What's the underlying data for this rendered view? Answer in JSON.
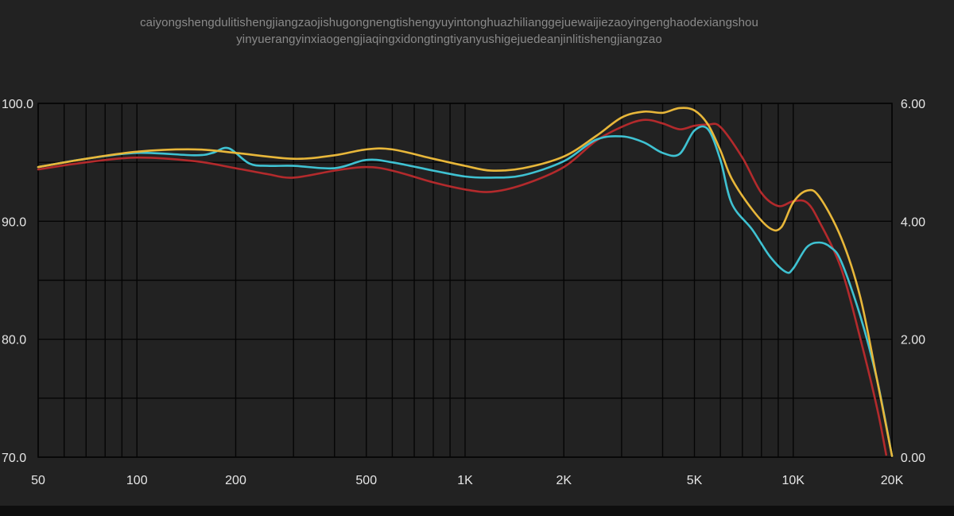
{
  "chart_data": {
    "type": "line",
    "title_lines": [
      "caiyongshengdulitishengjiangzaojishugongnengtishengyuyintonghuazhilianggejuewaijiezaoyingenghaodexiangshou",
      "yinyuerangyinxiaogengjiaqingxidongtingtiyanyushigejuedeanjinlitishengjiangzao"
    ],
    "x_scale": "log",
    "xlim": [
      50,
      20000
    ],
    "ylim_left": [
      70,
      100
    ],
    "ylim_right": [
      0,
      6
    ],
    "x_ticks": [
      {
        "value": 50,
        "label": "50"
      },
      {
        "value": 100,
        "label": "100"
      },
      {
        "value": 200,
        "label": "200"
      },
      {
        "value": 500,
        "label": "500"
      },
      {
        "value": 1000,
        "label": "1K"
      },
      {
        "value": 2000,
        "label": "2K"
      },
      {
        "value": 5000,
        "label": "5K"
      },
      {
        "value": 10000,
        "label": "10K"
      },
      {
        "value": 20000,
        "label": "20K"
      }
    ],
    "y_ticks_left": [
      {
        "value": 100,
        "label": "100.0"
      },
      {
        "value": 90,
        "label": "90.0"
      },
      {
        "value": 80,
        "label": "80.0"
      },
      {
        "value": 70,
        "label": "70.0"
      }
    ],
    "y_ticks_right": [
      {
        "value": 6,
        "label": "6.00"
      },
      {
        "value": 4,
        "label": "4.00"
      },
      {
        "value": 2,
        "label": "2.00"
      },
      {
        "value": 0,
        "label": "0.00"
      }
    ],
    "grid": true,
    "series": [
      {
        "color": "#e8b73a",
        "points": [
          [
            50,
            94.6
          ],
          [
            70,
            95.3
          ],
          [
            100,
            95.9
          ],
          [
            150,
            96.1
          ],
          [
            200,
            95.8
          ],
          [
            300,
            95.3
          ],
          [
            400,
            95.6
          ],
          [
            500,
            96.1
          ],
          [
            600,
            96.1
          ],
          [
            800,
            95.3
          ],
          [
            1000,
            94.7
          ],
          [
            1200,
            94.3
          ],
          [
            1500,
            94.5
          ],
          [
            2000,
            95.5
          ],
          [
            2500,
            97.2
          ],
          [
            3000,
            98.8
          ],
          [
            3500,
            99.3
          ],
          [
            4000,
            99.2
          ],
          [
            4500,
            99.6
          ],
          [
            5000,
            99.4
          ],
          [
            5500,
            98.2
          ],
          [
            6000,
            96.0
          ],
          [
            6500,
            93.6
          ],
          [
            7500,
            91.0
          ],
          [
            8500,
            89.4
          ],
          [
            9200,
            89.5
          ],
          [
            10000,
            91.6
          ],
          [
            11000,
            92.6
          ],
          [
            12000,
            92.1
          ],
          [
            14000,
            88.6
          ],
          [
            16000,
            83.6
          ],
          [
            18000,
            76.6
          ],
          [
            20000,
            70.1
          ]
        ]
      },
      {
        "color": "#3fc2d2",
        "points": [
          [
            50,
            94.6
          ],
          [
            70,
            95.3
          ],
          [
            100,
            95.8
          ],
          [
            150,
            95.6
          ],
          [
            170,
            95.8
          ],
          [
            190,
            96.2
          ],
          [
            220,
            94.9
          ],
          [
            250,
            94.7
          ],
          [
            300,
            94.7
          ],
          [
            400,
            94.5
          ],
          [
            500,
            95.2
          ],
          [
            600,
            95.0
          ],
          [
            800,
            94.3
          ],
          [
            1000,
            93.8
          ],
          [
            1200,
            93.7
          ],
          [
            1500,
            93.9
          ],
          [
            2000,
            95.1
          ],
          [
            2500,
            96.9
          ],
          [
            3000,
            97.2
          ],
          [
            3500,
            96.7
          ],
          [
            4000,
            95.8
          ],
          [
            4500,
            95.7
          ],
          [
            5000,
            97.7
          ],
          [
            5500,
            97.8
          ],
          [
            6000,
            95.2
          ],
          [
            6500,
            91.5
          ],
          [
            7500,
            89.3
          ],
          [
            8500,
            87.0
          ],
          [
            9500,
            85.7
          ],
          [
            10000,
            86.0
          ],
          [
            11000,
            87.8
          ],
          [
            12000,
            88.2
          ],
          [
            13000,
            87.8
          ],
          [
            14000,
            86.6
          ],
          [
            16000,
            82.0
          ],
          [
            18000,
            76.6
          ],
          [
            20000,
            70.1
          ]
        ]
      },
      {
        "color": "#b32a2c",
        "points": [
          [
            50,
            94.4
          ],
          [
            70,
            95.0
          ],
          [
            100,
            95.4
          ],
          [
            150,
            95.1
          ],
          [
            200,
            94.5
          ],
          [
            250,
            94.0
          ],
          [
            300,
            93.7
          ],
          [
            400,
            94.3
          ],
          [
            500,
            94.6
          ],
          [
            600,
            94.3
          ],
          [
            800,
            93.3
          ],
          [
            1000,
            92.7
          ],
          [
            1200,
            92.5
          ],
          [
            1500,
            93.1
          ],
          [
            2000,
            94.6
          ],
          [
            2500,
            96.8
          ],
          [
            3000,
            98.0
          ],
          [
            3500,
            98.6
          ],
          [
            4000,
            98.3
          ],
          [
            4500,
            97.8
          ],
          [
            5000,
            98.1
          ],
          [
            5500,
            98.2
          ],
          [
            6000,
            98.0
          ],
          [
            7000,
            95.4
          ],
          [
            8000,
            92.4
          ],
          [
            9000,
            91.3
          ],
          [
            10000,
            91.7
          ],
          [
            11000,
            91.6
          ],
          [
            12000,
            90.0
          ],
          [
            14000,
            86.0
          ],
          [
            16000,
            80.1
          ],
          [
            18000,
            74.2
          ],
          [
            19200,
            70.2
          ]
        ]
      }
    ]
  }
}
